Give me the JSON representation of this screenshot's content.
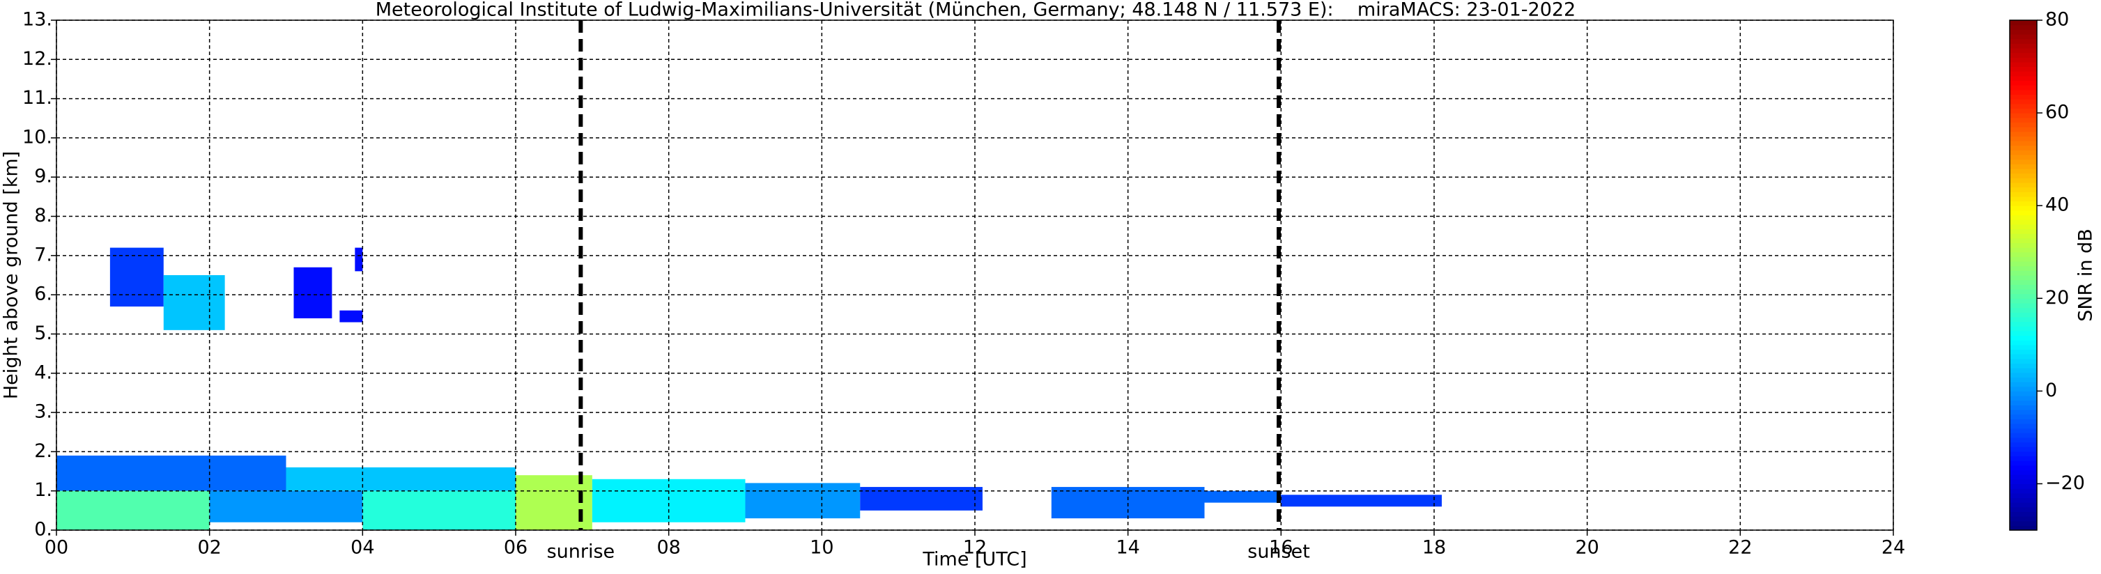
{
  "chart_data": {
    "type": "heatmap",
    "title": "Meteorological Institute of Ludwig-Maximilians-Universität (München, Germany; 48.148 N / 11.573 E):    miraMACS: 23-01-2022",
    "x_label": "Time [UTC]",
    "y_label": "Height above ground [km]",
    "colorbar_label": "SNR in dB",
    "xlim": [
      0,
      24
    ],
    "ylim": [
      0,
      13
    ],
    "clim": [
      -30,
      80
    ],
    "grid": true,
    "xticks": [
      {
        "value": 0,
        "label": "00"
      },
      {
        "value": 2,
        "label": "02"
      },
      {
        "value": 4,
        "label": "04"
      },
      {
        "value": 6,
        "label": "06"
      },
      {
        "value": 8,
        "label": "08"
      },
      {
        "value": 10,
        "label": "10"
      },
      {
        "value": 12,
        "label": "12"
      },
      {
        "value": 14,
        "label": "14"
      },
      {
        "value": 16,
        "label": "16"
      },
      {
        "value": 18,
        "label": "18"
      },
      {
        "value": 20,
        "label": "20"
      },
      {
        "value": 22,
        "label": "22"
      },
      {
        "value": 24,
        "label": "24"
      }
    ],
    "yticks": [
      {
        "value": 0,
        "label": "0."
      },
      {
        "value": 1,
        "label": "1."
      },
      {
        "value": 2,
        "label": "2."
      },
      {
        "value": 3,
        "label": "3."
      },
      {
        "value": 4,
        "label": "4."
      },
      {
        "value": 5,
        "label": "5."
      },
      {
        "value": 6,
        "label": "6."
      },
      {
        "value": 7,
        "label": "7."
      },
      {
        "value": 8,
        "label": "8."
      },
      {
        "value": 9,
        "label": "9."
      },
      {
        "value": 10,
        "label": "10."
      },
      {
        "value": 11,
        "label": "11."
      },
      {
        "value": 12,
        "label": "12."
      },
      {
        "value": 13,
        "label": "13."
      }
    ],
    "cticks": [
      {
        "value": -20,
        "label": "−20"
      },
      0,
      20,
      40,
      60,
      80
    ],
    "events": [
      {
        "name": "sunrise",
        "x": 6.85
      },
      {
        "name": "sunset",
        "x": 15.97
      }
    ],
    "cells": {
      "x0": [
        0,
        3,
        0,
        2,
        4,
        6,
        7,
        9,
        10.5,
        13,
        15,
        16,
        0.7,
        1.4,
        3.1,
        3.7,
        3.9
      ],
      "x1": [
        3,
        6,
        2,
        4,
        6,
        7,
        9,
        10.5,
        12.1,
        15,
        16,
        18.1,
        1.4,
        2.2,
        3.6,
        4.0,
        4.0
      ],
      "y0": [
        1.0,
        1.0,
        0,
        0.2,
        0,
        0,
        0.2,
        0.3,
        0.5,
        0.3,
        0.7,
        0.6,
        5.7,
        5.1,
        5.4,
        5.3,
        6.6
      ],
      "y1": [
        1.9,
        1.6,
        1.0,
        1.0,
        1.0,
        1.4,
        1.3,
        1.2,
        1.1,
        1.1,
        1.0,
        0.9,
        7.2,
        6.5,
        6.7,
        5.6,
        7.2
      ],
      "values": [
        -5,
        5,
        20,
        0,
        15,
        30,
        10,
        0,
        -10,
        -5,
        -5,
        -10,
        -10,
        5,
        -15,
        -15,
        -15
      ]
    }
  }
}
